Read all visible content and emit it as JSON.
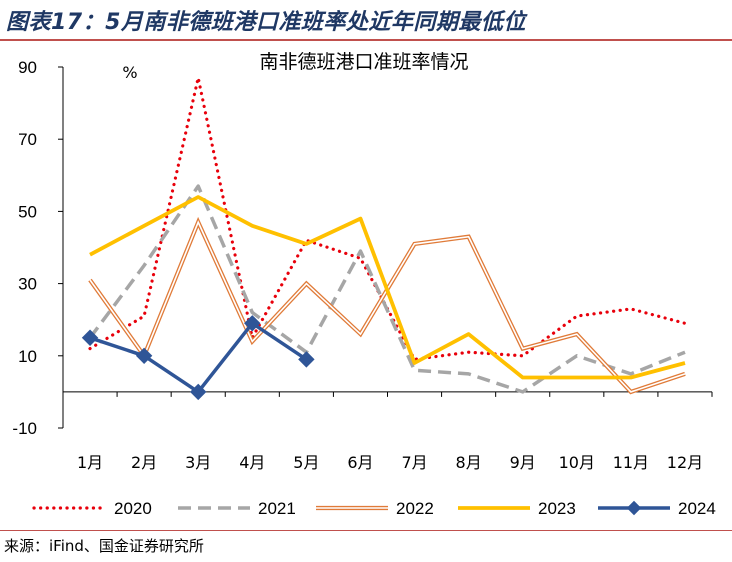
{
  "figure": {
    "title": "图表17：5月南非德班港口准班率处近年同期最低位",
    "source": "来源：iFind、国金证券研究所"
  },
  "chart_data": {
    "type": "line",
    "title": "南非德班港口准班率情况",
    "unit_label": "%",
    "xlabel": "",
    "ylabel": "%",
    "ylim": [
      -10,
      90
    ],
    "yticks": [
      -10,
      10,
      30,
      50,
      70,
      90
    ],
    "categories": [
      "1月",
      "2月",
      "3月",
      "4月",
      "5月",
      "6月",
      "7月",
      "8月",
      "9月",
      "10月",
      "11月",
      "12月"
    ],
    "legend_position": "bottom",
    "series": [
      {
        "name": "2020",
        "color": "#e8000b",
        "style": "dotted",
        "values": [
          12,
          21,
          87,
          15,
          42,
          37,
          9,
          11,
          10,
          21,
          23,
          19
        ]
      },
      {
        "name": "2021",
        "color": "#a6a6a6",
        "style": "dashed",
        "values": [
          15,
          35,
          57,
          22,
          11,
          39,
          6,
          5,
          0,
          10,
          5,
          11
        ]
      },
      {
        "name": "2022",
        "color": "#e07b39",
        "style": "double",
        "values": [
          31,
          10,
          47,
          14,
          30,
          16,
          41,
          43,
          12,
          16,
          0,
          5
        ]
      },
      {
        "name": "2023",
        "color": "#ffc000",
        "style": "solid",
        "values": [
          38,
          46,
          54,
          46,
          41,
          48,
          8,
          16,
          4,
          4,
          4,
          8
        ]
      },
      {
        "name": "2024",
        "color": "#2f5597",
        "style": "marker",
        "values": [
          15,
          10,
          0,
          19,
          9,
          null,
          null,
          null,
          null,
          null,
          null,
          null
        ]
      }
    ]
  }
}
